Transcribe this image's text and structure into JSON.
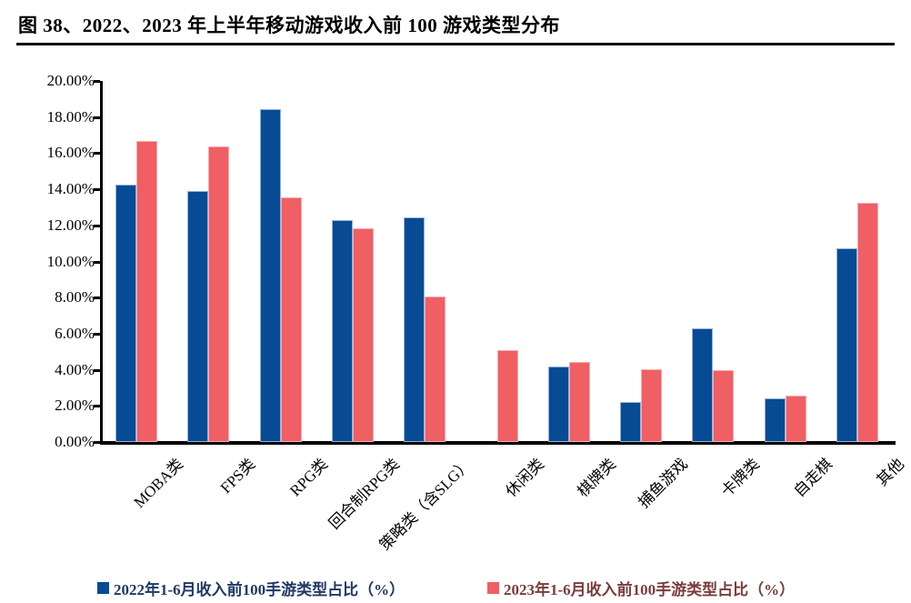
{
  "figure": {
    "title": "图 38、2022、2023 年上半年移动游戏收入前 100 游戏类型分布"
  },
  "colors": {
    "series_2022_fill": "#064b94",
    "series_2022_edge": "#8fb4da",
    "series_2023_fill": "#ef5f64",
    "series_2023_edge": "#f8abad",
    "legend_text_2022": "#1f3864",
    "legend_text_2023": "#7a3b3b",
    "axis": "#000000",
    "title_text": "#000000",
    "background": "#ffffff"
  },
  "legend": {
    "items": [
      {
        "label": "2022年1-6月收入前100手游类型占比（%）",
        "swatch_color": "#064b94",
        "text_color": "#1f3864"
      },
      {
        "label": "2023年1-6月收入前100手游类型占比（%）",
        "swatch_color": "#ef5f64",
        "text_color": "#7a3b3b"
      }
    ]
  },
  "chart_data": {
    "type": "bar",
    "title": "2022、2023 年上半年移动游戏收入前 100 游戏类型分布",
    "xlabel": "",
    "ylabel": "",
    "categories": [
      "MOBA类",
      "FPS类",
      "RPG类",
      "回合制RPG类",
      "策略类（含SLG）",
      "休闲类",
      "棋牌类",
      "捕鱼游戏",
      "卡牌类",
      "自走棋",
      "其他"
    ],
    "series": [
      {
        "name": "2022年1-6月收入前100手游类型占比（%）",
        "color": "#064b94",
        "values": [
          14.25,
          13.9,
          18.45,
          12.3,
          12.45,
          0,
          4.2,
          2.2,
          6.3,
          2.4,
          10.75
        ]
      },
      {
        "name": "2023年1-6月收入前100手游类型占比（%）",
        "color": "#ef5f64",
        "values": [
          16.7,
          16.35,
          13.55,
          11.85,
          8.05,
          5.1,
          4.45,
          4.05,
          4.0,
          2.55,
          13.25
        ]
      }
    ],
    "ylim": [
      0,
      20
    ],
    "ytick_step": 2,
    "ytick_labels_top_to_bottom": [
      "20.00%",
      "18.00%",
      "16.00%",
      "14.00%",
      "12.00%",
      "10.00%",
      "8.00%",
      "6.00%",
      "4.00%",
      "2.00%",
      "0.00%"
    ],
    "grid": false,
    "bar_label_rotation_deg": -45,
    "legend_position": "bottom"
  }
}
